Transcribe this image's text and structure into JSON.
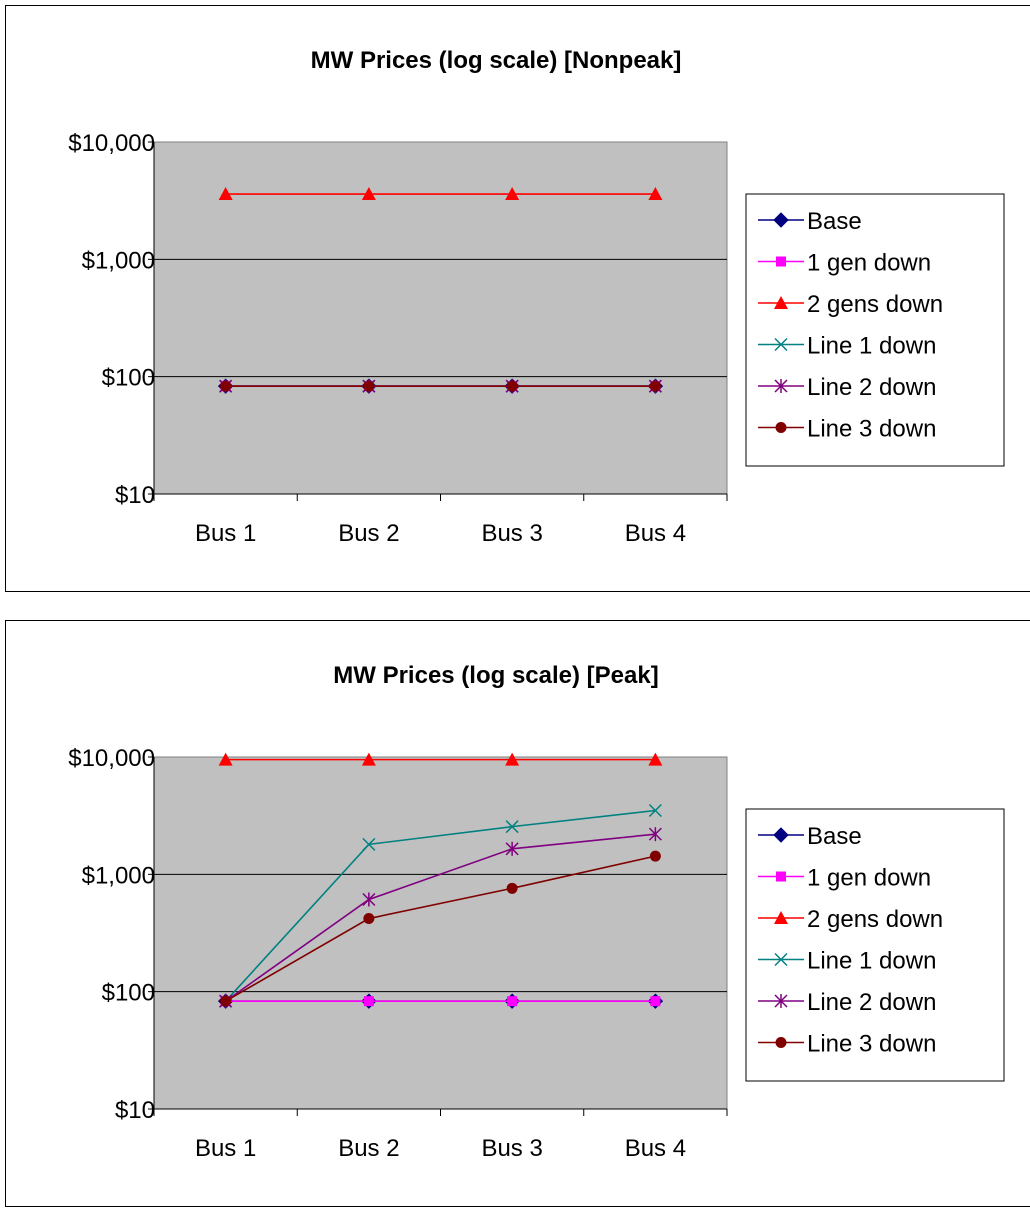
{
  "chart_data": [
    {
      "type": "line",
      "title": "MW Prices (log scale) [Nonpeak]",
      "xlabel": "",
      "ylabel": "",
      "yscale": "log",
      "ylim": [
        10,
        10000
      ],
      "yticks": [
        "$10",
        "$100",
        "$1,000",
        "$10,000"
      ],
      "ytick_values": [
        10,
        100,
        1000,
        10000
      ],
      "categories": [
        "Bus 1",
        "Bus 2",
        "Bus 3",
        "Bus 4"
      ],
      "grid": true,
      "legend": "right",
      "plot_background": "#c0c0c0",
      "series": [
        {
          "name": "Base",
          "values": [
            83,
            83,
            83,
            83
          ],
          "color": "#000080",
          "marker": "diamond"
        },
        {
          "name": "1 gen down",
          "values": [
            83,
            83,
            83,
            83
          ],
          "color": "#ff00ff",
          "marker": "square"
        },
        {
          "name": "2 gens down",
          "values": [
            3600,
            3600,
            3600,
            3600
          ],
          "color": "#ff0000",
          "marker": "triangle"
        },
        {
          "name": "Line 1 down",
          "values": [
            83,
            83,
            83,
            83
          ],
          "color": "#008080",
          "marker": "x"
        },
        {
          "name": "Line 2 down",
          "values": [
            83,
            83,
            83,
            83
          ],
          "color": "#800080",
          "marker": "star"
        },
        {
          "name": "Line 3 down",
          "values": [
            83,
            83,
            83,
            83
          ],
          "color": "#800000",
          "marker": "circle"
        }
      ]
    },
    {
      "type": "line",
      "title": "MW Prices (log scale) [Peak]",
      "xlabel": "",
      "ylabel": "",
      "yscale": "log",
      "ylim": [
        10,
        10000
      ],
      "yticks": [
        "$10",
        "$100",
        "$1,000",
        "$10,000"
      ],
      "ytick_values": [
        10,
        100,
        1000,
        10000
      ],
      "categories": [
        "Bus 1",
        "Bus 2",
        "Bus 3",
        "Bus 4"
      ],
      "grid": true,
      "legend": "right",
      "plot_background": "#c0c0c0",
      "series": [
        {
          "name": "Base",
          "values": [
            83,
            83,
            83,
            83
          ],
          "color": "#000080",
          "marker": "diamond"
        },
        {
          "name": "1 gen down",
          "values": [
            83,
            83,
            83,
            83
          ],
          "color": "#ff00ff",
          "marker": "square"
        },
        {
          "name": "2 gens down",
          "values": [
            9500,
            9500,
            9500,
            9500
          ],
          "color": "#ff0000",
          "marker": "triangle"
        },
        {
          "name": "Line 1 down",
          "values": [
            83,
            1800,
            2550,
            3500
          ],
          "color": "#008080",
          "marker": "x"
        },
        {
          "name": "Line 2 down",
          "values": [
            83,
            610,
            1650,
            2200
          ],
          "color": "#800080",
          "marker": "star"
        },
        {
          "name": "Line 3 down",
          "values": [
            83,
            420,
            760,
            1430
          ],
          "color": "#800000",
          "marker": "circle"
        }
      ]
    }
  ]
}
